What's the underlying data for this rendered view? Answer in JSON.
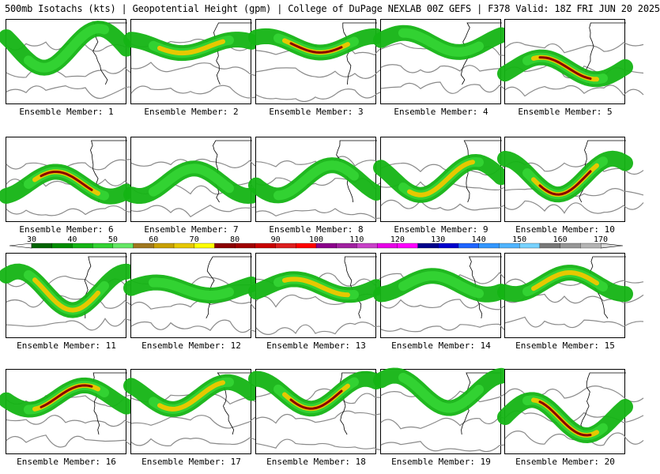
{
  "header": {
    "title": "500mb Isotachs (kts) | Geopotential Height (gpm) | College of DuPage NEXLAB   00Z GEFS | F378 Valid: 18Z FRI JUN 20 2025"
  },
  "colors": {
    "height_contour": "#8a8a8a",
    "coastline": "#000000",
    "panel_border": "#000000"
  },
  "colorbar": {
    "ticks": [
      "30",
      "40",
      "50",
      "60",
      "70",
      "80",
      "90",
      "100",
      "110",
      "120",
      "130",
      "140",
      "150",
      "160",
      "170"
    ],
    "bins": [
      "#006400",
      "#008c00",
      "#14b414",
      "#32d232",
      "#64e664",
      "#a0781e",
      "#c8a000",
      "#e6c800",
      "#ffff00",
      "#8b0000",
      "#a00000",
      "#c80000",
      "#dc1e1e",
      "#ff0000",
      "#8b008b",
      "#a020a0",
      "#c840c8",
      "#e600e6",
      "#ff00ff",
      "#00008b",
      "#0000cd",
      "#1e64ff",
      "#3296ff",
      "#50b4ff",
      "#78d2ff",
      "#787878",
      "#969696",
      "#b4b4b4"
    ]
  },
  "panels": [
    {
      "label": "Ensemble Member: 1",
      "max_level": 1
    },
    {
      "label": "Ensemble Member: 2",
      "max_level": 2
    },
    {
      "label": "Ensemble Member: 3",
      "max_level": 3
    },
    {
      "label": "Ensemble Member: 4",
      "max_level": 1
    },
    {
      "label": "Ensemble Member: 5",
      "max_level": 3
    },
    {
      "label": "Ensemble Member: 6",
      "max_level": 3
    },
    {
      "label": "Ensemble Member: 7",
      "max_level": 1
    },
    {
      "label": "Ensemble Member: 8",
      "max_level": 1
    },
    {
      "label": "Ensemble Member: 9",
      "max_level": 2
    },
    {
      "label": "Ensemble Member: 10",
      "max_level": 3
    },
    {
      "label": "Ensemble Member: 11",
      "max_level": 2
    },
    {
      "label": "Ensemble Member: 12",
      "max_level": 1
    },
    {
      "label": "Ensemble Member: 13",
      "max_level": 2
    },
    {
      "label": "Ensemble Member: 14",
      "max_level": 1
    },
    {
      "label": "Ensemble Member: 15",
      "max_level": 2
    },
    {
      "label": "Ensemble Member: 16",
      "max_level": 3
    },
    {
      "label": "Ensemble Member: 17",
      "max_level": 2
    },
    {
      "label": "Ensemble Member: 18",
      "max_level": 3
    },
    {
      "label": "Ensemble Member: 19",
      "max_level": 1
    },
    {
      "label": "Ensemble Member: 20",
      "max_level": 3
    }
  ]
}
